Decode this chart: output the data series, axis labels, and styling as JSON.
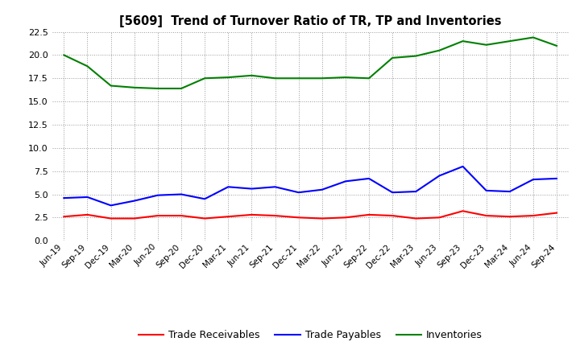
{
  "title": "[5609]  Trend of Turnover Ratio of TR, TP and Inventories",
  "x_labels": [
    "Jun-19",
    "Sep-19",
    "Dec-19",
    "Mar-20",
    "Jun-20",
    "Sep-20",
    "Dec-20",
    "Mar-21",
    "Jun-21",
    "Sep-21",
    "Dec-21",
    "Mar-22",
    "Jun-22",
    "Sep-22",
    "Dec-22",
    "Mar-23",
    "Jun-23",
    "Sep-23",
    "Dec-23",
    "Mar-24",
    "Jun-24",
    "Sep-24"
  ],
  "trade_receivables": [
    2.6,
    2.8,
    2.4,
    2.4,
    2.7,
    2.7,
    2.4,
    2.6,
    2.8,
    2.7,
    2.5,
    2.4,
    2.5,
    2.8,
    2.7,
    2.4,
    2.5,
    3.2,
    2.7,
    2.6,
    2.7,
    3.0
  ],
  "trade_payables": [
    4.6,
    4.7,
    3.8,
    4.3,
    4.9,
    5.0,
    4.5,
    5.8,
    5.6,
    5.8,
    5.2,
    5.5,
    6.4,
    6.7,
    5.2,
    5.3,
    7.0,
    8.0,
    5.4,
    5.3,
    6.6,
    6.7
  ],
  "inventories": [
    20.0,
    18.8,
    16.7,
    16.5,
    16.4,
    16.4,
    17.5,
    17.6,
    17.8,
    17.5,
    17.5,
    17.5,
    17.6,
    17.5,
    19.7,
    19.9,
    20.5,
    21.5,
    21.1,
    21.5,
    21.9,
    21.0
  ],
  "ylim": [
    0.0,
    22.5
  ],
  "yticks": [
    0.0,
    2.5,
    5.0,
    7.5,
    10.0,
    12.5,
    15.0,
    17.5,
    20.0,
    22.5
  ],
  "color_tr": "#ff0000",
  "color_tp": "#0000ff",
  "color_inv": "#008000",
  "background_color": "#ffffff",
  "grid_color": "#aaaaaa",
  "legend_labels": [
    "Trade Receivables",
    "Trade Payables",
    "Inventories"
  ]
}
